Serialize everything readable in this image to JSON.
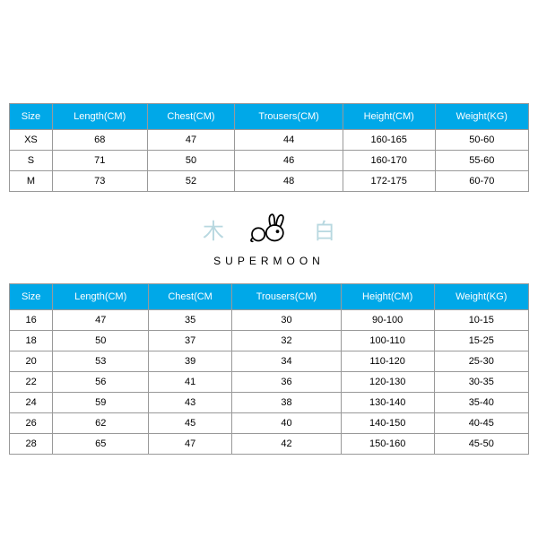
{
  "tables": {
    "adult": {
      "columns": [
        "Size",
        "Length(CM)",
        "Chest(CM)",
        "Trousers(CM)",
        "Height(CM)",
        "Weight(KG)"
      ],
      "rows": [
        [
          "XS",
          "68",
          "47",
          "44",
          "160-165",
          "50-60"
        ],
        [
          "S",
          "71",
          "50",
          "46",
          "160-170",
          "55-60"
        ],
        [
          "M",
          "73",
          "52",
          "48",
          "172-175",
          "60-70"
        ]
      ]
    },
    "kids": {
      "columns": [
        "Size",
        "Length(CM)",
        "Chest(CM",
        "Trousers(CM)",
        "Height(CM)",
        "Weight(KG)"
      ],
      "rows": [
        [
          "16",
          "47",
          "35",
          "30",
          "90-100",
          "10-15"
        ],
        [
          "18",
          "50",
          "37",
          "32",
          "100-110",
          "15-25"
        ],
        [
          "20",
          "53",
          "39",
          "34",
          "110-120",
          "25-30"
        ],
        [
          "22",
          "56",
          "41",
          "36",
          "120-130",
          "30-35"
        ],
        [
          "24",
          "59",
          "43",
          "38",
          "130-140",
          "35-40"
        ],
        [
          "26",
          "62",
          "45",
          "40",
          "140-150",
          "40-45"
        ],
        [
          "28",
          "65",
          "47",
          "42",
          "150-160",
          "45-50"
        ]
      ]
    }
  },
  "brand": {
    "char_left": "木",
    "char_right": "白",
    "name": "SUPERMOON"
  },
  "colors": {
    "header_bg": "#00a8e8",
    "header_text": "#ffffff",
    "border": "#999999",
    "cell_text": "#000000",
    "char_color": "#b8d8e0"
  }
}
